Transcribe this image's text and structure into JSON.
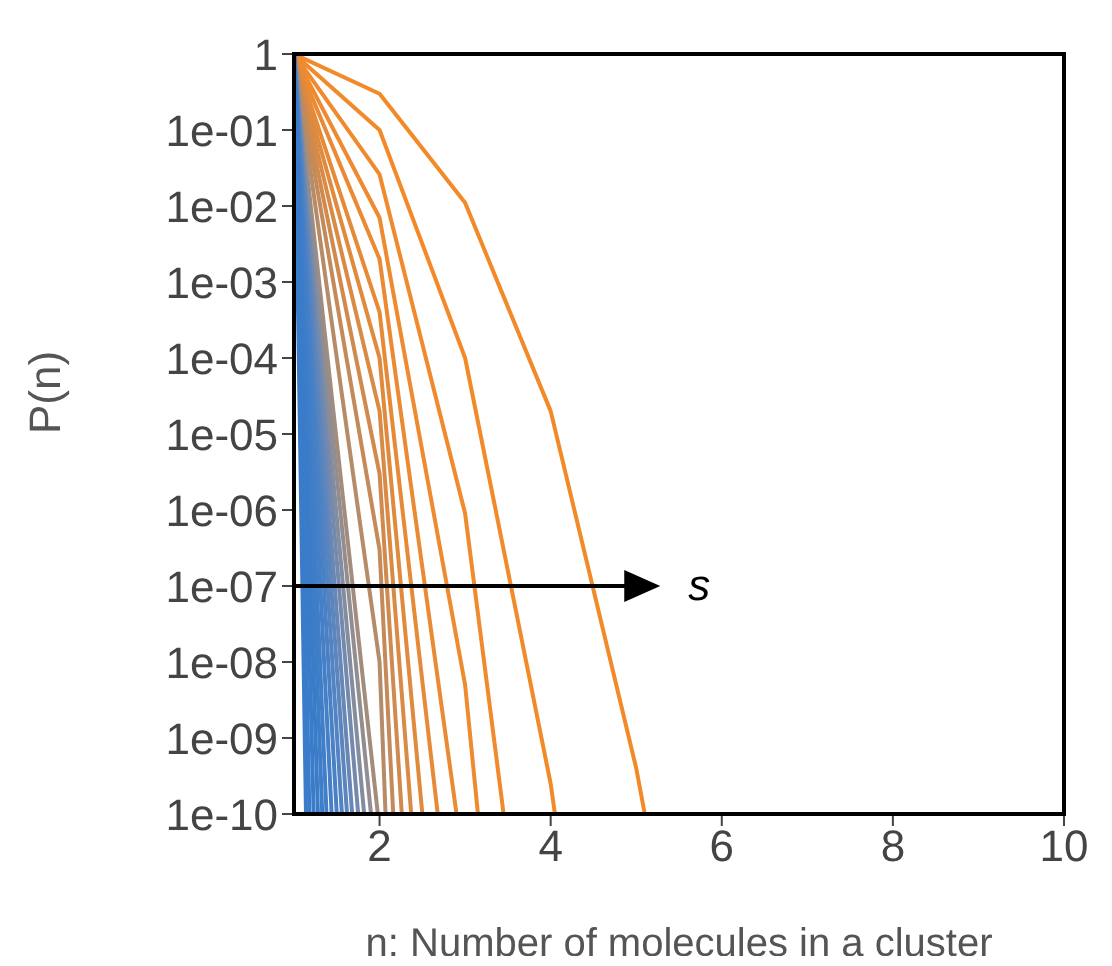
{
  "chart_data": {
    "type": "line",
    "xlabel": "n: Number of molecules in a cluster",
    "ylabel": "P(n)",
    "log": "y",
    "marker": "none",
    "line_style": "solid",
    "xlim": [
      1,
      10
    ],
    "xticks": [
      2,
      4,
      6,
      8,
      10
    ],
    "ylim": [
      1e-10,
      1
    ],
    "yticks": [
      1,
      {
        "value": 0.1,
        "label": "1e-01"
      },
      {
        "value": 0.01,
        "label": "1e-02"
      },
      {
        "value": 0.001,
        "label": "1e-03"
      },
      {
        "value": 0.0001,
        "label": "1e-04"
      },
      {
        "value": 1e-05,
        "label": "1e-05"
      },
      {
        "value": 1e-06,
        "label": "1e-06"
      },
      {
        "value": 1e-07,
        "label": "1e-07"
      },
      {
        "value": 1e-08,
        "label": "1e-08"
      },
      {
        "value": 1e-09,
        "label": "1e-09"
      },
      {
        "value": 1e-10,
        "label": "1e-10"
      }
    ],
    "annotations": [
      "s"
    ],
    "series": [
      {
        "color": "#f28a2a",
        "x": [
          1,
          2,
          3,
          4,
          5,
          5.1
        ],
        "values": [
          1,
          0.3,
          0.011,
          2e-05,
          4e-10,
          1e-10
        ]
      },
      {
        "color": "#f28a2a",
        "x": [
          1,
          2,
          3,
          4,
          4.05
        ],
        "values": [
          1,
          0.1,
          0.0001,
          2.5e-10,
          1e-10
        ]
      },
      {
        "color": "#f08a2e",
        "x": [
          1,
          2,
          3,
          3.45
        ],
        "values": [
          1,
          0.026,
          9e-07,
          1e-10
        ]
      },
      {
        "color": "#ee8a30",
        "x": [
          1,
          2,
          3,
          3.15
        ],
        "values": [
          1,
          0.007,
          5e-09,
          1e-10
        ]
      },
      {
        "color": "#ea8a34",
        "x": [
          1,
          2,
          2.9
        ],
        "values": [
          1,
          0.002,
          1e-10
        ]
      },
      {
        "color": "#e68a38",
        "x": [
          1,
          2,
          2.68
        ],
        "values": [
          1,
          0.0004,
          1e-10
        ]
      },
      {
        "color": "#e08a3e",
        "x": [
          1,
          2,
          2.5
        ],
        "values": [
          1,
          0.0001,
          1e-10
        ]
      },
      {
        "color": "#d98a45",
        "x": [
          1,
          2,
          2.37
        ],
        "values": [
          1,
          2e-05,
          1e-10
        ]
      },
      {
        "color": "#d08a4e",
        "x": [
          1,
          2,
          2.26
        ],
        "values": [
          1,
          3e-06,
          1e-10
        ]
      },
      {
        "color": "#c48a5a",
        "x": [
          1,
          2,
          2.16
        ],
        "values": [
          1,
          3e-07,
          1e-10
        ]
      },
      {
        "color": "#b68b68",
        "x": [
          1,
          2,
          2.07
        ],
        "values": [
          1,
          1e-08,
          1e-10
        ]
      },
      {
        "color": "#a48c7c",
        "x": [
          1,
          1.98
        ],
        "values": [
          1,
          1e-10
        ]
      },
      {
        "color": "#928d90",
        "x": [
          1,
          1.9
        ],
        "values": [
          1,
          1e-10
        ]
      },
      {
        "color": "#838d9f",
        "x": [
          1,
          1.82
        ],
        "values": [
          1,
          1e-10
        ]
      },
      {
        "color": "#7489ad",
        "x": [
          1,
          1.75
        ],
        "values": [
          1,
          1e-10
        ]
      },
      {
        "color": "#6787b6",
        "x": [
          1,
          1.68
        ],
        "values": [
          1,
          1e-10
        ]
      },
      {
        "color": "#5c85bd",
        "x": [
          1,
          1.62
        ],
        "values": [
          1,
          1e-10
        ]
      },
      {
        "color": "#5283c2",
        "x": [
          1,
          1.56
        ],
        "values": [
          1,
          1e-10
        ]
      },
      {
        "color": "#4a81c5",
        "x": [
          1,
          1.5
        ],
        "values": [
          1,
          1e-10
        ]
      },
      {
        "color": "#447fc7",
        "x": [
          1,
          1.44
        ],
        "values": [
          1,
          1e-10
        ]
      },
      {
        "color": "#407ec8",
        "x": [
          1,
          1.38
        ],
        "values": [
          1,
          1e-10
        ]
      },
      {
        "color": "#3d7dc9",
        "x": [
          1,
          1.33
        ],
        "values": [
          1,
          1e-10
        ]
      },
      {
        "color": "#3b7cc9",
        "x": [
          1,
          1.28
        ],
        "values": [
          1,
          1e-10
        ]
      },
      {
        "color": "#3a7cca",
        "x": [
          1,
          1.23
        ],
        "values": [
          1,
          1e-10
        ]
      },
      {
        "color": "#3a7cca",
        "x": [
          1,
          1.18
        ],
        "values": [
          1,
          1e-10
        ]
      },
      {
        "color": "#3a7cca",
        "x": [
          1,
          1.14
        ],
        "values": [
          1,
          1e-10
        ]
      }
    ]
  }
}
